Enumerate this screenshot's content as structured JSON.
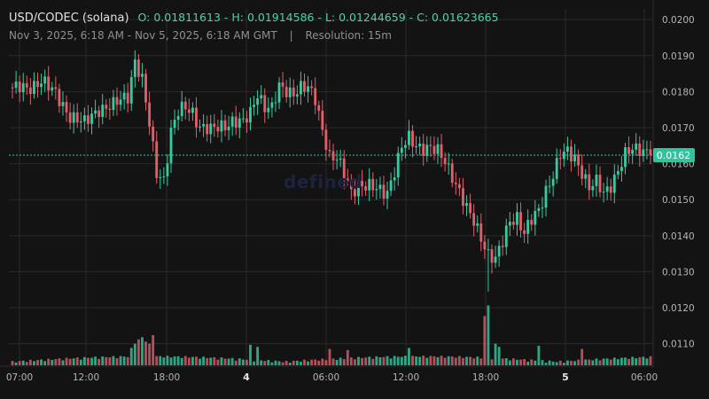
{
  "header": {
    "symbol": "USD/CODEC (solana)",
    "ohlc": "O: 0.01811613 - H: 0.01914586 - L: 0.01244659 - C: 0.01623665",
    "range": "Nov 3, 2025, 6:18 AM - Nov 5, 2025, 6:18 AM GMT",
    "separator": "|",
    "resolution": "Resolution: 15m"
  },
  "watermark": "defined",
  "price_tag": "0.0162",
  "colors": {
    "background": "#131313",
    "grid": "#2a2a2a",
    "up": "#39c9a0",
    "down": "#e05f6b",
    "price_line": "#3bc8a4",
    "price_tag_bg": "#2fc3a0"
  },
  "chart_data": {
    "type": "candlestick",
    "interval": "15m",
    "y_ticks": [
      "0.0200",
      "0.0190",
      "0.0180",
      "0.0170",
      "0.0160",
      "0.0150",
      "0.0140",
      "0.0130",
      "0.0120",
      "0.0110"
    ],
    "ylim": [
      0.0104,
      0.0203
    ],
    "x_ticks": [
      {
        "label": "07:00",
        "bold": false
      },
      {
        "label": "12:00",
        "bold": false
      },
      {
        "label": "18:00",
        "bold": false
      },
      {
        "label": "4",
        "bold": true
      },
      {
        "label": "06:00",
        "bold": false
      },
      {
        "label": "12:00",
        "bold": false
      },
      {
        "label": "18:00",
        "bold": false
      },
      {
        "label": "5",
        "bold": true
      },
      {
        "label": "06:00",
        "bold": false
      }
    ],
    "current_price": 0.01623665,
    "price_anchors": [
      [
        0,
        0.01811
      ],
      [
        4,
        0.01805
      ],
      [
        8,
        0.01835
      ],
      [
        12,
        0.0179
      ],
      [
        16,
        0.01735
      ],
      [
        20,
        0.0171
      ],
      [
        24,
        0.01755
      ],
      [
        28,
        0.0176
      ],
      [
        32,
        0.0179
      ],
      [
        34,
        0.0189
      ],
      [
        36,
        0.0183
      ],
      [
        38,
        0.01705
      ],
      [
        40,
        0.01575
      ],
      [
        42,
        0.0156
      ],
      [
        44,
        0.0169
      ],
      [
        46,
        0.0174
      ],
      [
        48,
        0.01755
      ],
      [
        50,
        0.01745
      ],
      [
        52,
        0.01705
      ],
      [
        55,
        0.0169
      ],
      [
        58,
        0.01705
      ],
      [
        61,
        0.0172
      ],
      [
        64,
        0.0171
      ],
      [
        66,
        0.0174
      ],
      [
        68,
        0.018
      ],
      [
        70,
        0.0176
      ],
      [
        72,
        0.0175
      ],
      [
        74,
        0.0181
      ],
      [
        76,
        0.01805
      ],
      [
        78,
        0.018
      ],
      [
        80,
        0.0181
      ],
      [
        82,
        0.01805
      ],
      [
        84,
        0.0178
      ],
      [
        86,
        0.017
      ],
      [
        88,
        0.0162
      ],
      [
        90,
        0.0161
      ],
      [
        92,
        0.0157
      ],
      [
        94,
        0.01525
      ],
      [
        96,
        0.01545
      ],
      [
        98,
        0.01535
      ],
      [
        100,
        0.0153
      ],
      [
        104,
        0.01525
      ],
      [
        106,
        0.0158
      ],
      [
        108,
        0.0164
      ],
      [
        110,
        0.0167
      ],
      [
        112,
        0.01655
      ],
      [
        114,
        0.01645
      ],
      [
        116,
        0.0164
      ],
      [
        118,
        0.0163
      ],
      [
        120,
        0.0161
      ],
      [
        122,
        0.0157
      ],
      [
        124,
        0.0152
      ],
      [
        126,
        0.0147
      ],
      [
        128,
        0.0144
      ],
      [
        130,
        0.014
      ],
      [
        132,
        0.0135
      ],
      [
        134,
        0.0133
      ],
      [
        136,
        0.0138
      ],
      [
        138,
        0.01445
      ],
      [
        140,
        0.01455
      ],
      [
        142,
        0.01405
      ],
      [
        144,
        0.0144
      ],
      [
        146,
        0.0147
      ],
      [
        148,
        0.0153
      ],
      [
        150,
        0.0157
      ],
      [
        152,
        0.0162
      ],
      [
        154,
        0.0163
      ],
      [
        156,
        0.0162
      ],
      [
        158,
        0.0158
      ],
      [
        160,
        0.0153
      ],
      [
        162,
        0.01545
      ],
      [
        164,
        0.0152
      ],
      [
        166,
        0.01545
      ],
      [
        168,
        0.0158
      ],
      [
        170,
        0.0162
      ],
      [
        172,
        0.0164
      ],
      [
        174,
        0.01645
      ],
      [
        176,
        0.01637
      ],
      [
        177,
        0.01623665
      ]
    ],
    "volume_spikes": [
      [
        33,
        0.4
      ],
      [
        34,
        0.6
      ],
      [
        35,
        0.8
      ],
      [
        36,
        0.9
      ],
      [
        37,
        0.7
      ],
      [
        38,
        0.6
      ],
      [
        39,
        1.0
      ],
      [
        66,
        0.55
      ],
      [
        68,
        0.45
      ],
      [
        88,
        0.35
      ],
      [
        93,
        0.3
      ],
      [
        110,
        0.4
      ],
      [
        131,
        1.9
      ],
      [
        132,
        2.4
      ],
      [
        134,
        0.6
      ],
      [
        135,
        0.45
      ],
      [
        146,
        0.5
      ],
      [
        158,
        0.35
      ]
    ]
  }
}
